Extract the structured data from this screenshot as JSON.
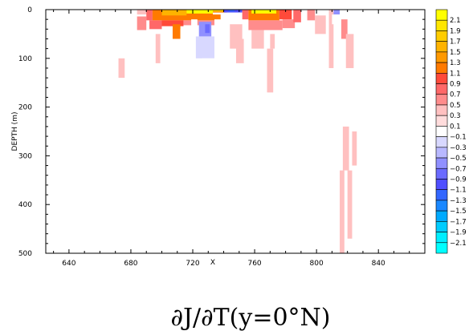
{
  "chart_data": {
    "type": "heatmap",
    "title": "∂J/∂T(y=0°N)",
    "xlabel": "X",
    "ylabel": "DEPTH (m)",
    "xlim": [
      625,
      870
    ],
    "ylim": [
      0,
      500
    ],
    "y_inverted": true,
    "xticks": [
      640,
      680,
      720,
      760,
      800,
      840
    ],
    "xtick_labels": [
      "640",
      "680",
      "720",
      "760",
      "800",
      "840"
    ],
    "yticks": [
      0,
      100,
      200,
      300,
      400,
      500
    ],
    "ytick_labels": [
      "0",
      "100",
      "200",
      "300",
      "400",
      "500"
    ],
    "colorbar": {
      "levels": [
        {
          "label": "2.1",
          "color": "#ffff00"
        },
        {
          "label": "1.9",
          "color": "#ffe600"
        },
        {
          "label": "1.7",
          "color": "#ffcc00"
        },
        {
          "label": "1.5",
          "color": "#ffb300"
        },
        {
          "label": "1.3",
          "color": "#ff9900"
        },
        {
          "label": "1.1",
          "color": "#ff7a00"
        },
        {
          "label": "0.9",
          "color": "#ff4a3a"
        },
        {
          "label": "0.7",
          "color": "#ff6868"
        },
        {
          "label": "0.5",
          "color": "#ff8c8c"
        },
        {
          "label": "0.3",
          "color": "#ffc0c0"
        },
        {
          "label": "0.1",
          "color": "#ffdcdc"
        },
        {
          "label": "−0.1",
          "color": "#ffffff"
        },
        {
          "label": "−0.3",
          "color": "#d8d8ff"
        },
        {
          "label": "−0.5",
          "color": "#b8b8ff"
        },
        {
          "label": "−0.7",
          "color": "#9090ff"
        },
        {
          "label": "−0.9",
          "color": "#6b6bff"
        },
        {
          "label": "−1.1",
          "color": "#4f4fff"
        },
        {
          "label": "−1.3",
          "color": "#3366ff"
        },
        {
          "label": "−1.5",
          "color": "#1a88ff"
        },
        {
          "label": "−1.7",
          "color": "#00aaff"
        },
        {
          "label": "−1.9",
          "color": "#00ccff"
        },
        {
          "label": "−2.1",
          "color": "#00eeff"
        },
        {
          "label": "",
          "color": "#00ffff"
        }
      ]
    },
    "cells": [
      {
        "x0": 626,
        "x1": 629,
        "y0": 0,
        "y1": 14,
        "v": -0.2
      },
      {
        "x0": 662,
        "x1": 666,
        "y0": 0,
        "y1": 12,
        "v": -0.2
      },
      {
        "x0": 671,
        "x1": 682,
        "y0": 0,
        "y1": 16,
        "v": -0.3
      },
      {
        "x0": 684,
        "x1": 690,
        "y0": 0,
        "y1": 10,
        "v": 0.2
      },
      {
        "x0": 684,
        "x1": 690,
        "y0": 14,
        "y1": 42,
        "v": 0.4
      },
      {
        "x0": 690,
        "x1": 694,
        "y0": 0,
        "y1": 22,
        "v": 0.6
      },
      {
        "x0": 694,
        "x1": 742,
        "y0": 0,
        "y1": 22,
        "v": 1.0
      },
      {
        "x0": 692,
        "x1": 700,
        "y0": 22,
        "y1": 40,
        "v": 0.5
      },
      {
        "x0": 700,
        "x1": 714,
        "y0": 22,
        "y1": 34,
        "v": 0.8
      },
      {
        "x0": 714,
        "x1": 742,
        "y0": 22,
        "y1": 32,
        "v": 0.3
      },
      {
        "x0": 700,
        "x1": 716,
        "y0": 0,
        "y1": 12,
        "v": 1.4
      },
      {
        "x0": 716,
        "x1": 733,
        "y0": 0,
        "y1": 8,
        "v": 2.0
      },
      {
        "x0": 733,
        "x1": 740,
        "y0": 0,
        "y1": 4,
        "v": 1.6
      },
      {
        "x0": 707,
        "x1": 712,
        "y0": 30,
        "y1": 60,
        "v": 0.9
      },
      {
        "x0": 712,
        "x1": 718,
        "y0": 40,
        "y1": 100,
        "v": -0.2
      },
      {
        "x0": 712,
        "x1": 715,
        "y0": 100,
        "y1": 260,
        "v": -0.2
      },
      {
        "x0": 719,
        "x1": 723,
        "y0": 20,
        "y1": 80,
        "v": -0.3
      },
      {
        "x0": 719,
        "x1": 722,
        "y0": 80,
        "y1": 160,
        "v": -0.2
      },
      {
        "x0": 722,
        "x1": 724,
        "y0": 160,
        "y1": 350,
        "v": -0.2
      },
      {
        "x0": 724,
        "x1": 732,
        "y0": 25,
        "y1": 55,
        "v": -0.8
      },
      {
        "x0": 728,
        "x1": 731,
        "y0": 30,
        "y1": 48,
        "v": -1.0
      },
      {
        "x0": 722,
        "x1": 734,
        "y0": 55,
        "y1": 100,
        "v": -0.4
      },
      {
        "x0": 726,
        "x1": 732,
        "y0": 100,
        "y1": 160,
        "v": -0.3
      },
      {
        "x0": 732,
        "x1": 734,
        "y0": 100,
        "y1": 200,
        "v": -0.2
      },
      {
        "x0": 734,
        "x1": 740,
        "y0": 20,
        "y1": 45,
        "v": -0.3
      },
      {
        "x0": 738,
        "x1": 744,
        "y0": 8,
        "y1": 50,
        "v": -0.2
      },
      {
        "x0": 740,
        "x1": 752,
        "y0": 0,
        "y1": 6,
        "v": -1.2
      },
      {
        "x0": 743,
        "x1": 747,
        "y0": 0,
        "y1": 4,
        "v": -1.4
      },
      {
        "x0": 733,
        "x1": 756,
        "y0": 6,
        "y1": 10,
        "v": -0.3
      },
      {
        "x0": 752,
        "x1": 756,
        "y0": 0,
        "y1": 20,
        "v": 0.6
      },
      {
        "x0": 744,
        "x1": 752,
        "y0": 30,
        "y1": 80,
        "v": 0.2
      },
      {
        "x0": 756,
        "x1": 776,
        "y0": 0,
        "y1": 22,
        "v": 1.0
      },
      {
        "x0": 758,
        "x1": 774,
        "y0": 0,
        "y1": 8,
        "v": 2.0
      },
      {
        "x0": 756,
        "x1": 778,
        "y0": 22,
        "y1": 42,
        "v": 0.3
      },
      {
        "x0": 758,
        "x1": 766,
        "y0": 42,
        "y1": 80,
        "v": 0.2
      },
      {
        "x0": 768,
        "x1": 772,
        "y0": 80,
        "y1": 170,
        "v": 0.2
      },
      {
        "x0": 776,
        "x1": 784,
        "y0": 0,
        "y1": 20,
        "v": 0.7
      },
      {
        "x0": 778,
        "x1": 786,
        "y0": 20,
        "y1": 38,
        "v": 0.3
      },
      {
        "x0": 785,
        "x1": 790,
        "y0": 0,
        "y1": 26,
        "v": 0.5
      },
      {
        "x0": 794,
        "x1": 799,
        "y0": 0,
        "y1": 22,
        "v": 0.3
      },
      {
        "x0": 799,
        "x1": 806,
        "y0": 12,
        "y1": 50,
        "v": 0.2
      },
      {
        "x0": 808,
        "x1": 811,
        "y0": 0,
        "y1": 120,
        "v": 0.2
      },
      {
        "x0": 811,
        "x1": 815,
        "y0": 0,
        "y1": 10,
        "v": -0.9
      },
      {
        "x0": 810,
        "x1": 817,
        "y0": 10,
        "y1": 30,
        "v": -0.3
      },
      {
        "x0": 816,
        "x1": 820,
        "y0": 20,
        "y1": 60,
        "v": 0.3
      },
      {
        "x0": 813,
        "x1": 815,
        "y0": 40,
        "y1": 100,
        "v": -0.2
      },
      {
        "x0": 819,
        "x1": 824,
        "y0": 50,
        "y1": 120,
        "v": 0.2
      },
      {
        "x0": 817,
        "x1": 821,
        "y0": 240,
        "y1": 330,
        "v": 0.2
      },
      {
        "x0": 820,
        "x1": 823,
        "y0": 330,
        "y1": 470,
        "v": 0.2
      },
      {
        "x0": 815,
        "x1": 818,
        "y0": 330,
        "y1": 500,
        "v": 0.2
      },
      {
        "x0": 823,
        "x1": 826,
        "y0": 250,
        "y1": 320,
        "v": 0.2
      },
      {
        "x0": 770,
        "x1": 773,
        "y0": 50,
        "y1": 80,
        "v": 0.2
      },
      {
        "x0": 672,
        "x1": 676,
        "y0": 100,
        "y1": 140,
        "v": 0.2
      },
      {
        "x0": 696,
        "x1": 699,
        "y0": 50,
        "y1": 110,
        "v": 0.2
      },
      {
        "x0": 735,
        "x1": 738,
        "y0": 80,
        "y1": 130,
        "v": -0.2
      },
      {
        "x0": 748,
        "x1": 753,
        "y0": 60,
        "y1": 110,
        "v": 0.2
      }
    ]
  }
}
